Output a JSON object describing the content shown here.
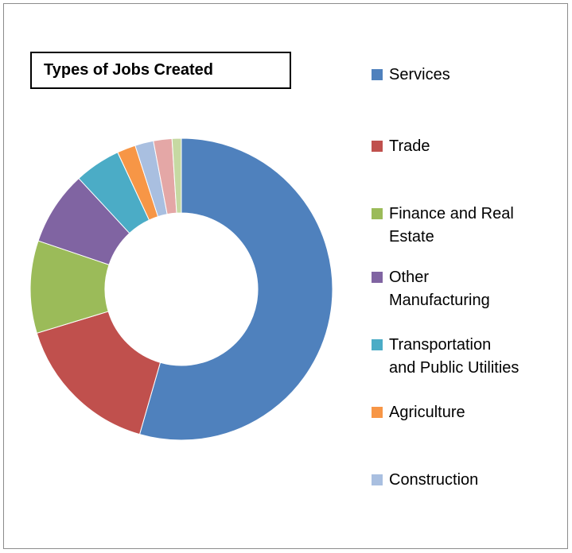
{
  "chart_data": {
    "type": "pie",
    "title": "Types of Jobs Created",
    "slices": [
      {
        "label": "Services",
        "value": 55,
        "color": "#4f81bd"
      },
      {
        "label": "Trade",
        "value": 16,
        "color": "#c0504d"
      },
      {
        "label": "Finance and Real Estate",
        "value": 10,
        "color": "#9bbb59"
      },
      {
        "label": "Other Manufacturing",
        "value": 8,
        "color": "#8064a2"
      },
      {
        "label": "Transportation and Public Utilities",
        "value": 5,
        "color": "#4bacc6"
      },
      {
        "label": "Agriculture",
        "value": 2,
        "color": "#f79646"
      },
      {
        "label": "Construction",
        "value": 2,
        "color": "#a9bfe0"
      },
      {
        "label": "",
        "value": 2,
        "color": "#e4a7a6"
      },
      {
        "label": "",
        "value": 1,
        "color": "#c6d9a2"
      }
    ],
    "legend_position": "right"
  },
  "legend_labels": [
    "Services",
    "Trade",
    "Finance and Real\nEstate",
    "Other\nManufacturing",
    "Transportation\nand Public Utilities",
    "Agriculture",
    "Construction"
  ]
}
